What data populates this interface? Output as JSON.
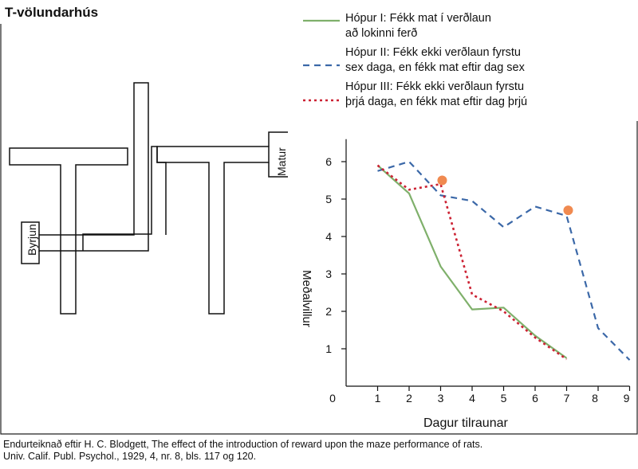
{
  "maze": {
    "title": "T-völundarhús",
    "start_label": "Byrjun",
    "goal_label": "Matur"
  },
  "caption": {
    "line1": "Endurteiknað eftir H. C. Blodgett, The effect of the introduction of reward upon the maze performance of rats.",
    "line2": "Univ. Calif. Publ. Psychol., 1929, 4, nr. 8, bls. 117 og 120."
  },
  "chart_data": {
    "type": "line",
    "xlabel": "Dagur tilraunar",
    "ylabel": "Meðalvillur",
    "xlim": [
      0,
      9
    ],
    "ylim": [
      0,
      6.6
    ],
    "x_ticks": [
      0,
      1,
      2,
      3,
      4,
      5,
      6,
      7,
      8,
      9
    ],
    "y_ticks": [
      1,
      2,
      3,
      4,
      5,
      6
    ],
    "grid": false,
    "legend_position": "top",
    "series": [
      {
        "name": "Hópur I: Fékk mat í verðlaun að lokinni ferð",
        "name_lines": [
          "Hópur I: Fékk mat í verðlaun",
          "að lokinni ferð"
        ],
        "style": "solid",
        "color": "#7fb06b",
        "x": [
          1,
          2,
          3,
          4,
          5,
          6,
          7
        ],
        "y": [
          5.9,
          5.15,
          3.2,
          2.05,
          2.1,
          1.35,
          0.75
        ]
      },
      {
        "name": "Hópur II: Fékk ekki verðlaun fyrstu sex daga, en fékk mat eftir dag sex",
        "name_lines": [
          "Hópur II: Fékk ekki verðlaun fyrstu",
          "sex daga, en fékk mat eftir dag sex"
        ],
        "style": "dashed",
        "color": "#3b68a8",
        "x": [
          1,
          2,
          3,
          4,
          5,
          6,
          7,
          8,
          9
        ],
        "y": [
          5.75,
          6.0,
          5.1,
          4.95,
          4.25,
          4.8,
          4.55,
          1.55,
          0.7
        ]
      },
      {
        "name": "Hópur III: Fékk ekki verðlaun fyrstu þrjá daga, en fékk mat eftir dag þrjú",
        "name_lines": [
          "Hópur III: Fékk ekki verðlaun fyrstu",
          "þrjá daga, en fékk mat eftir dag þrjú"
        ],
        "style": "dotted",
        "color": "#cc2233",
        "x": [
          1,
          2,
          3,
          4,
          5,
          6,
          7
        ],
        "y": [
          5.9,
          5.25,
          5.4,
          2.45,
          2.0,
          1.3,
          0.72
        ]
      }
    ],
    "reward_markers": [
      {
        "x": 3.05,
        "y": 5.5,
        "color": "#f08a50"
      },
      {
        "x": 7.05,
        "y": 4.7,
        "color": "#f08a50"
      }
    ]
  }
}
